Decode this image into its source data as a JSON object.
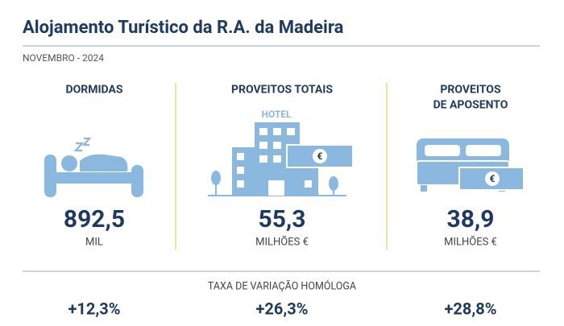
{
  "header": {
    "title": "Alojamento Turístico da R.A. da Madeira",
    "subtitle": "NOVEMBRO - 2024"
  },
  "cards": [
    {
      "title": [
        "DORMIDAS"
      ],
      "value": "892,5",
      "unit": "MIL",
      "change": "+12,3%"
    },
    {
      "title": [
        "PROVEITOS TOTAIS"
      ],
      "icon_label": "HOTEL",
      "icon_badge": "€",
      "value": "55,3",
      "unit": "MILHÕES €",
      "change": "+26,3%"
    },
    {
      "title": [
        "PROVEITOS",
        "DE APOSENTO"
      ],
      "icon_badge": "€",
      "value": "38,9",
      "unit": "MILHÕES €",
      "change": "+28,8%"
    }
  ],
  "footer": {
    "label": "TAXA DE VARIAÇÃO HOMÓLOGA"
  }
}
